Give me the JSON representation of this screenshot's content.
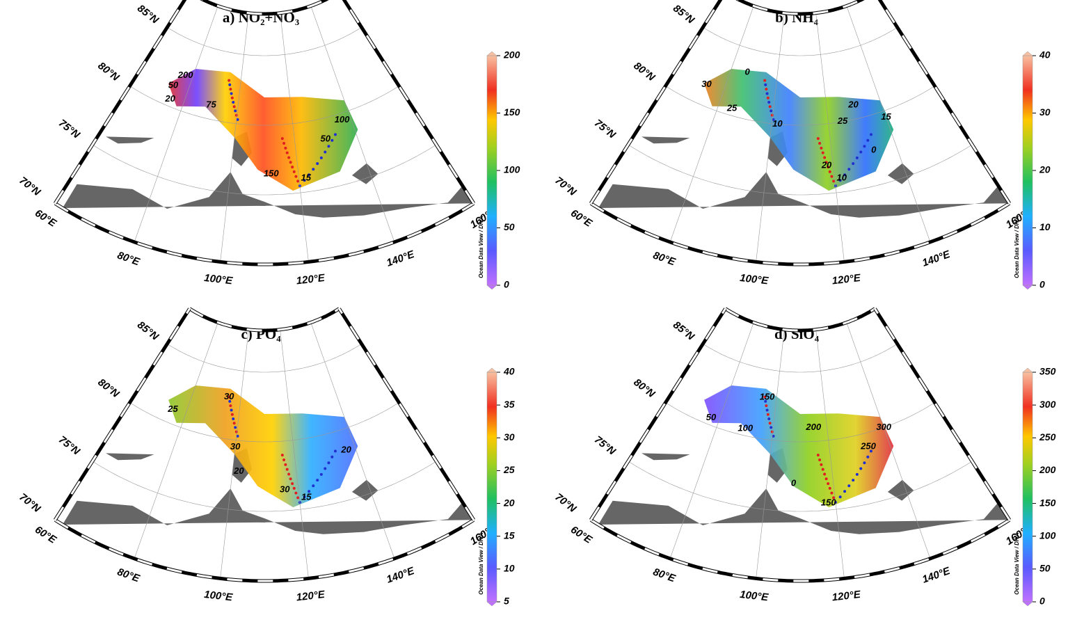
{
  "panels": [
    {
      "title": "a) NO₂+NO₃",
      "colorbar": {
        "ticks": [
          0,
          50,
          100,
          150,
          200
        ],
        "label": "Ocean Data View / DIVA"
      },
      "lat_labels": [
        "85°N",
        "80°N",
        "75°N",
        "70°N"
      ],
      "lon_labels": [
        "60°E",
        "80°E",
        "100°E",
        "120°E",
        "140°E",
        "160°E"
      ],
      "contour_labels": [
        "200",
        "50",
        "20",
        "75",
        "150",
        "50",
        "100",
        "15"
      ]
    },
    {
      "title": "b) NH₄",
      "colorbar": {
        "ticks": [
          0,
          10,
          20,
          30,
          40
        ],
        "label": "Ocean Data View / DIVA"
      },
      "lat_labels": [
        "85°N",
        "80°N",
        "75°N",
        "70°N"
      ],
      "lon_labels": [
        "60°E",
        "80°E",
        "100°E",
        "120°E",
        "140°E",
        "160°E"
      ],
      "contour_labels": [
        "30",
        "0",
        "25",
        "10",
        "25",
        "20",
        "15",
        "20",
        "10",
        "0"
      ]
    },
    {
      "title": "c) PO₄",
      "colorbar": {
        "ticks": [
          5,
          10,
          15,
          20,
          25,
          30,
          35,
          40
        ],
        "label": "Ocean Data View / DIVA"
      },
      "lat_labels": [
        "85°N",
        "80°N",
        "75°N",
        "70°N"
      ],
      "lon_labels": [
        "60°E",
        "80°E",
        "100°E",
        "120°E",
        "140°E",
        "160°E"
      ],
      "contour_labels": [
        "25",
        "30",
        "30",
        "20",
        "30",
        "15",
        "20"
      ]
    },
    {
      "title": "d) SiO₄",
      "colorbar": {
        "ticks": [
          0,
          50,
          100,
          150,
          200,
          250,
          300,
          350
        ],
        "label": "Ocean Data View / DIVA"
      },
      "lat_labels": [
        "85°N",
        "80°N",
        "75°N",
        "70°N"
      ],
      "lon_labels": [
        "60°E",
        "80°E",
        "100°E",
        "120°E",
        "140°E",
        "160°E"
      ],
      "contour_labels": [
        "50",
        "100",
        "150",
        "200",
        "250",
        "300",
        "0",
        "150"
      ]
    }
  ]
}
